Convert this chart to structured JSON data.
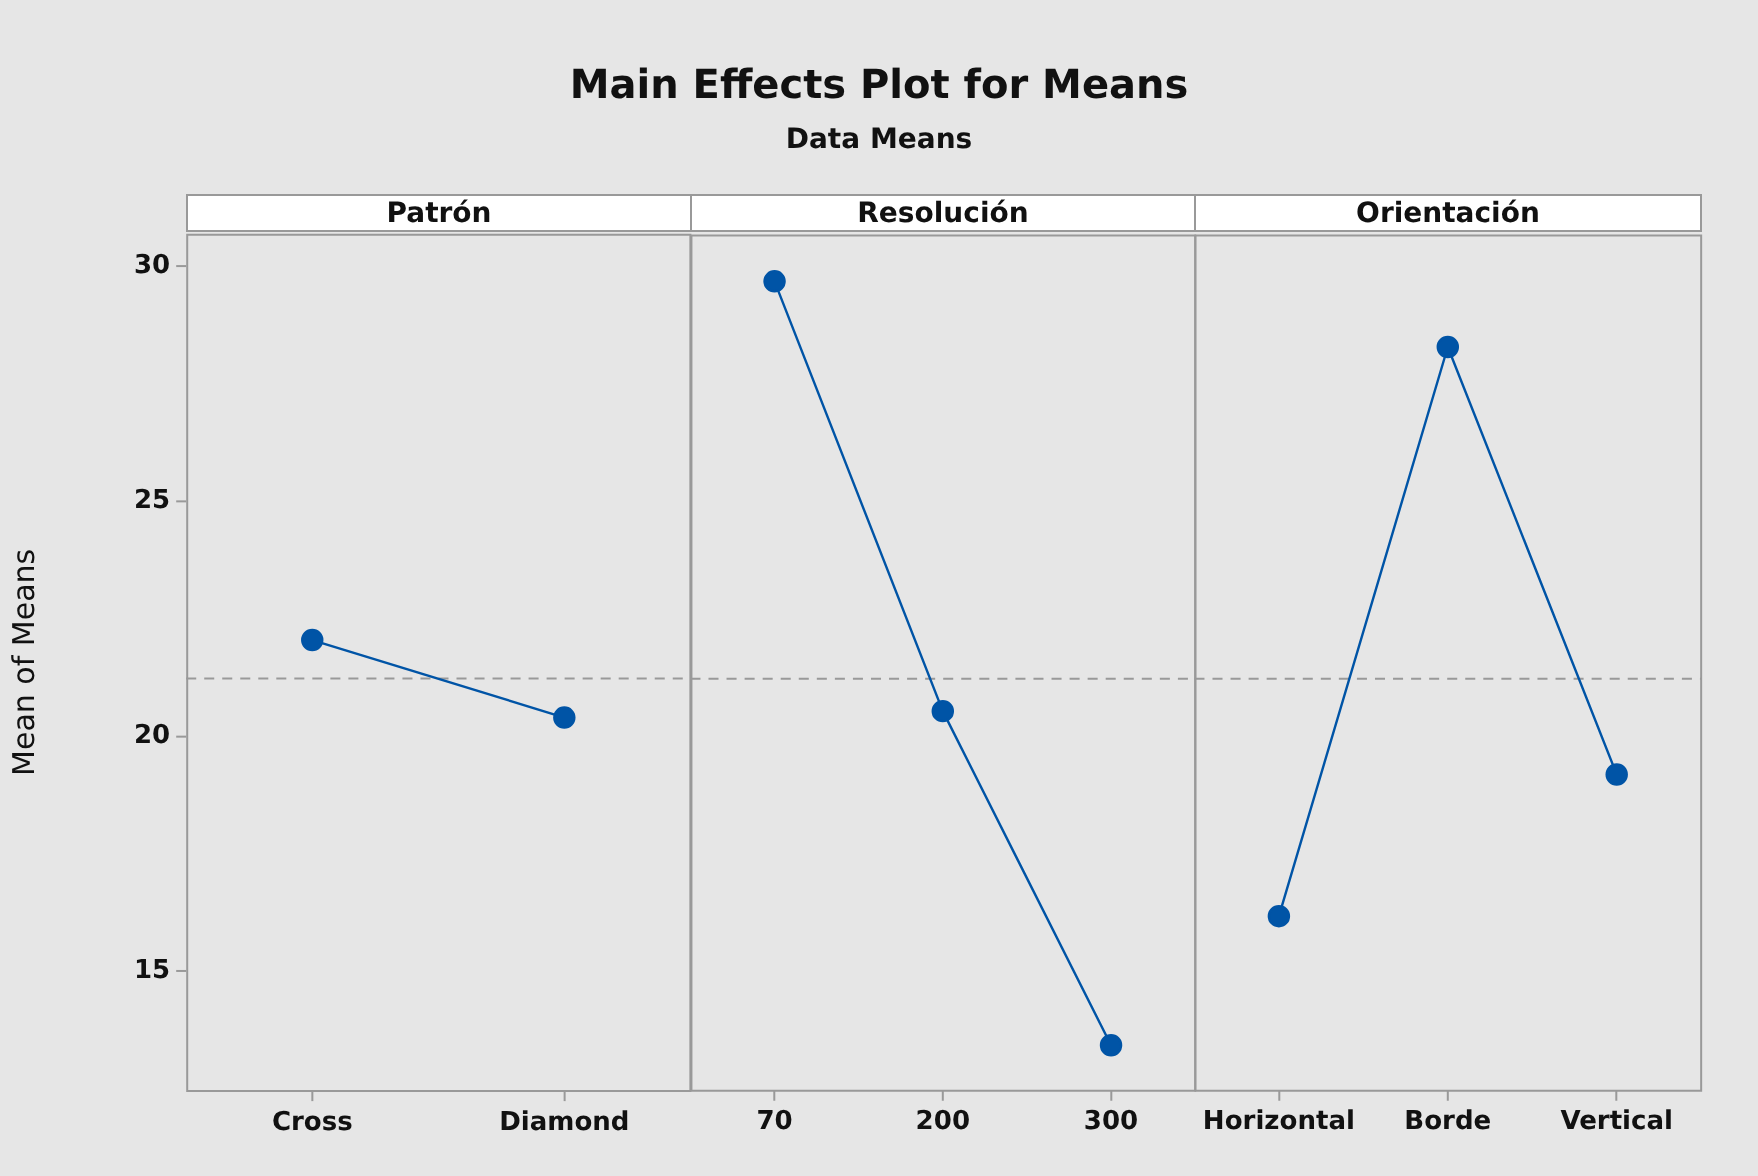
{
  "chart_data": [
    {
      "type": "line",
      "title": "Patrón",
      "annotations": [
        "Main Effects Plot for Means",
        "Data Means"
      ],
      "ylabel": "Mean of Means",
      "categories": [
        "Cross",
        "Diamond"
      ],
      "series": [
        {
          "color": "#0054a6",
          "values": [
            22.05,
            20.4
          ]
        }
      ],
      "ylim": [
        12.45,
        30.7
      ],
      "yticks": [
        15,
        20,
        25,
        30
      ],
      "marker": "circle",
      "line_style": "solid",
      "ref_lines": [
        {
          "axis": "y",
          "value": 21.23,
          "color": "#999999",
          "line_style": "dashed"
        }
      ]
    },
    {
      "type": "line",
      "title": "Resolución",
      "categories": [
        "70",
        "200",
        "300"
      ],
      "series": [
        {
          "color": "#0054a6",
          "values": [
            29.7,
            20.54,
            13.42
          ]
        }
      ],
      "ylim": [
        12.45,
        30.7
      ],
      "yticks": [
        15,
        20,
        25,
        30
      ],
      "tick_labels": "x",
      "marker": "circle",
      "line_style": "solid",
      "ref_lines": [
        {
          "axis": "y",
          "value": 21.23,
          "color": "#999999",
          "line_style": "dashed"
        }
      ]
    },
    {
      "type": "line",
      "title": "Orientación",
      "categories": [
        "Horizontal",
        "Borde",
        "Vertical"
      ],
      "series": [
        {
          "color": "#0054a6",
          "values": [
            16.17,
            28.3,
            19.19
          ]
        }
      ],
      "ylim": [
        12.45,
        30.7
      ],
      "yticks": [
        15,
        20,
        25,
        30
      ],
      "tick_labels": "x",
      "marker": "circle",
      "line_style": "solid",
      "ref_lines": [
        {
          "axis": "y",
          "value": 21.23,
          "color": "#999999",
          "line_style": "dashed"
        }
      ]
    }
  ]
}
